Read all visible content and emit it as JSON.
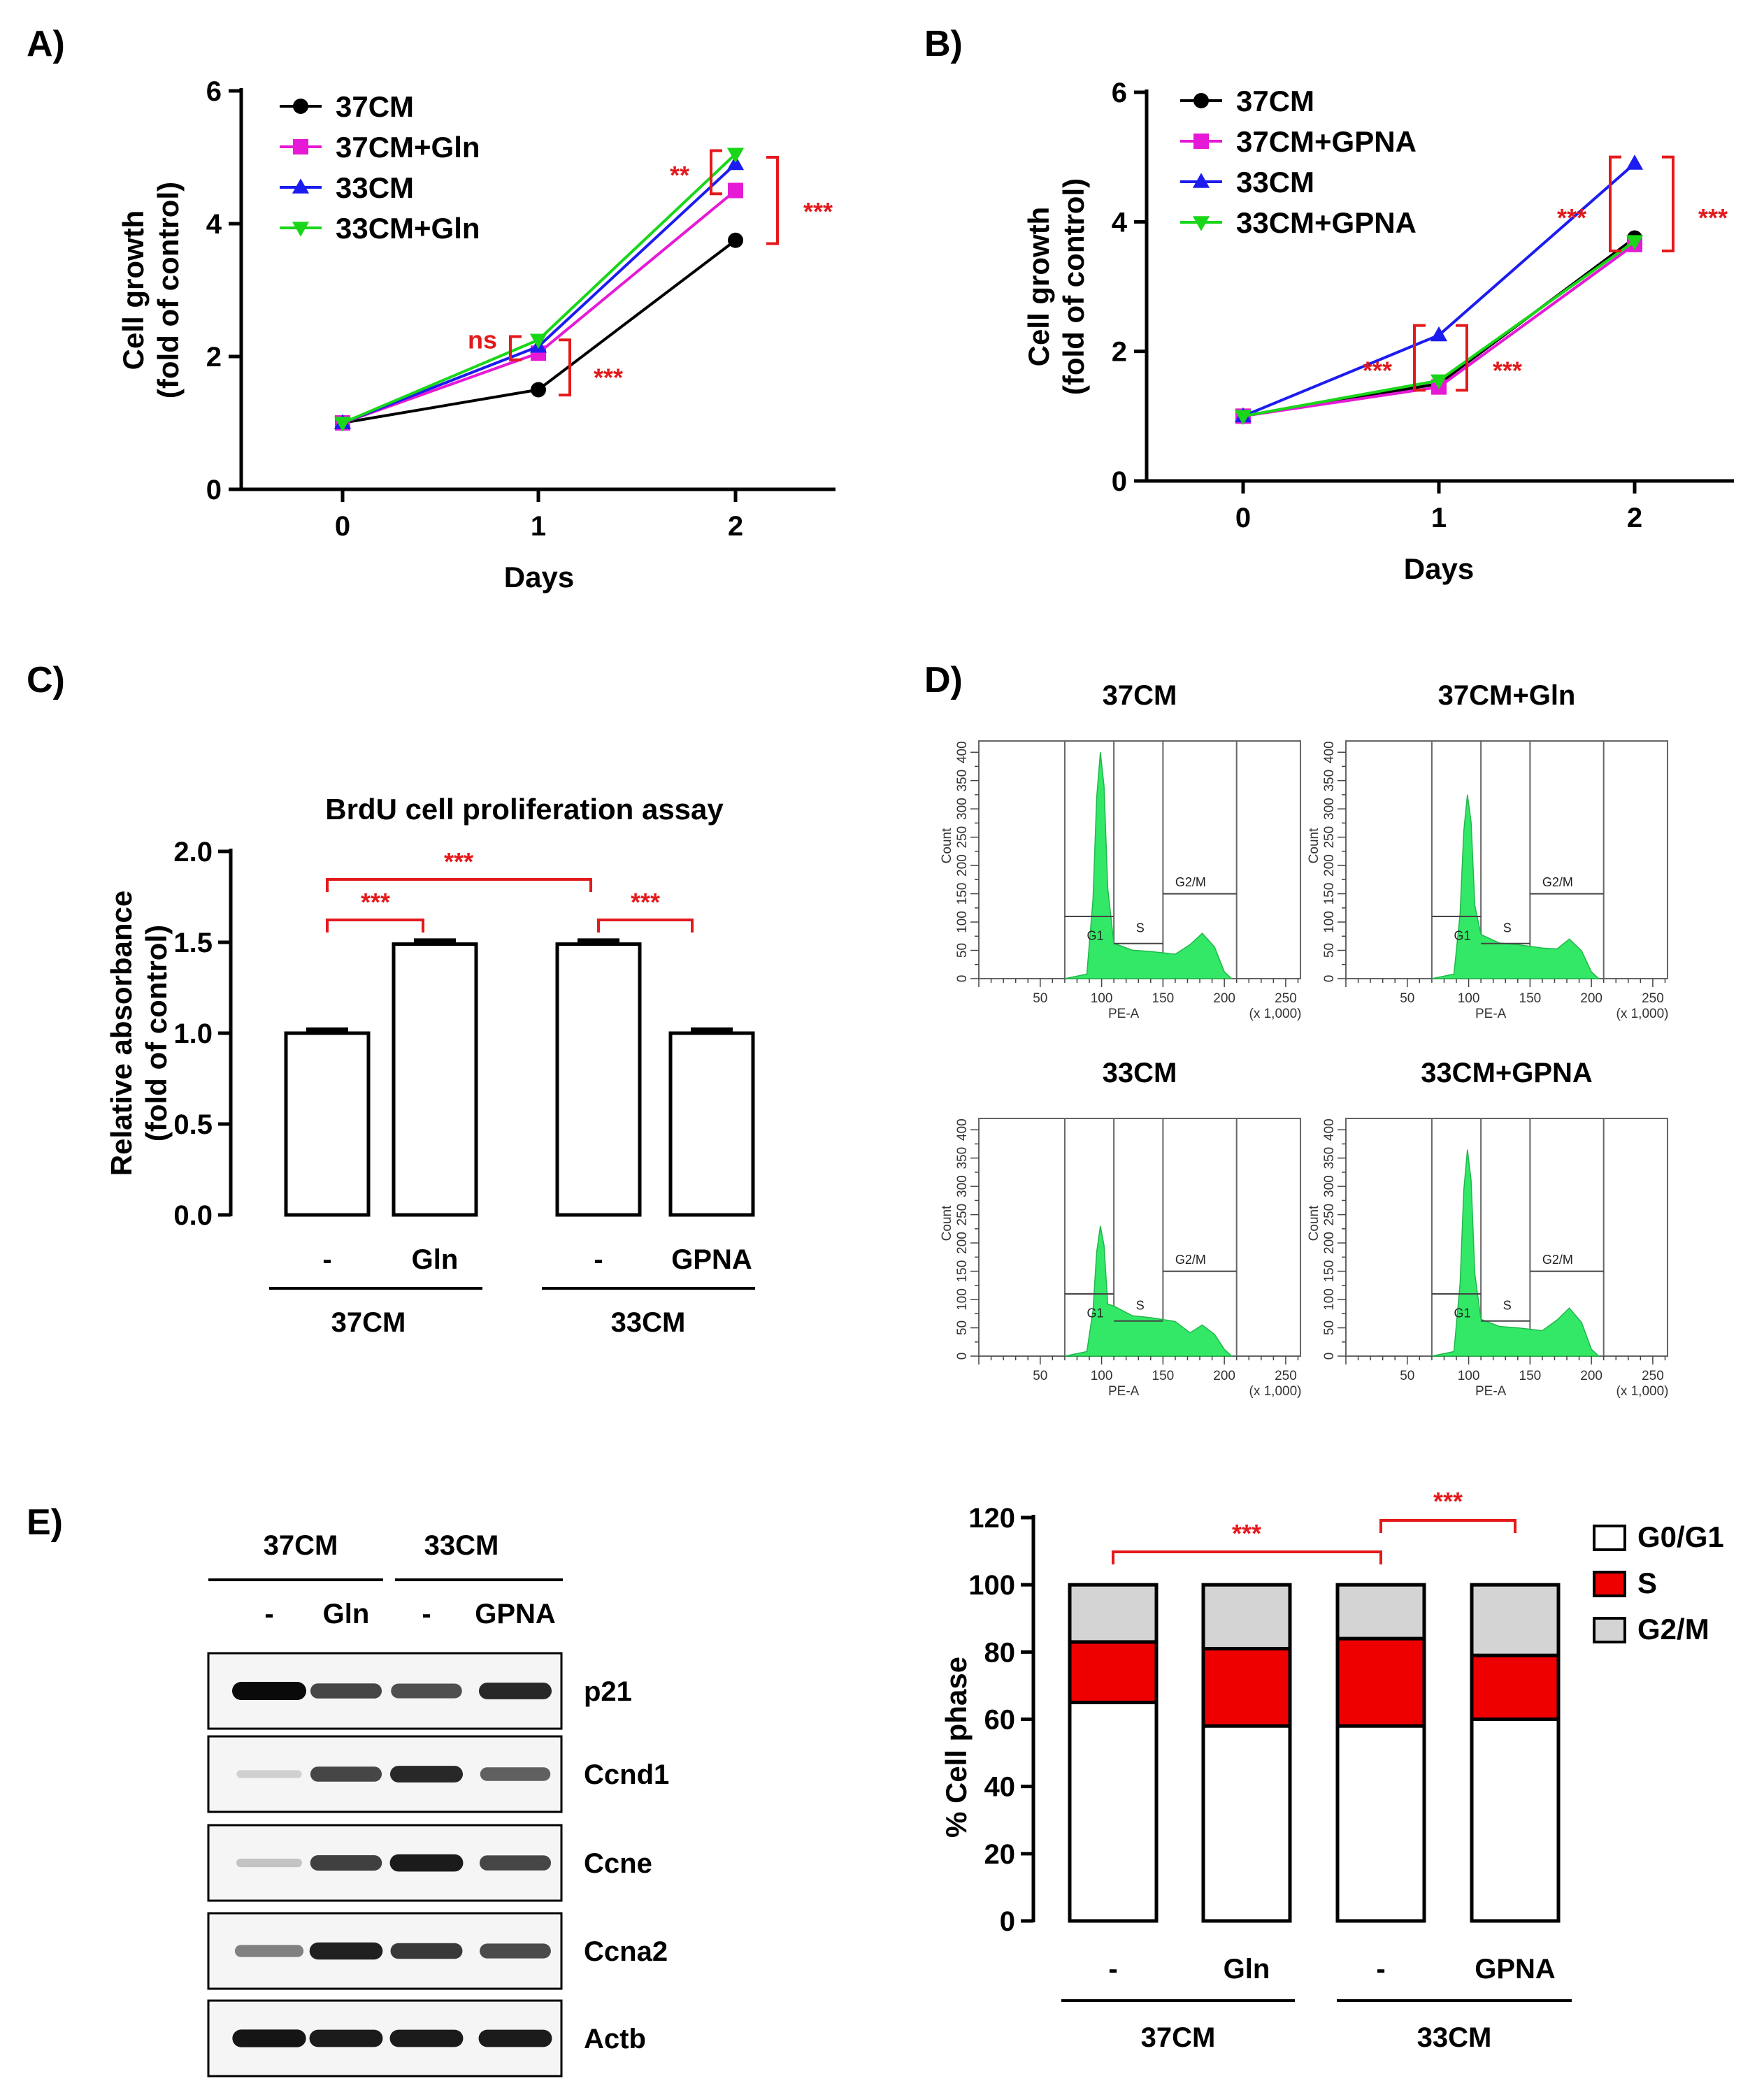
{
  "panels": {
    "a": {
      "label": "A)"
    },
    "b": {
      "label": "B)"
    },
    "c": {
      "label": "C)"
    },
    "d": {
      "label": "D)"
    },
    "e": {
      "label": "E)"
    }
  },
  "colors": {
    "c37CM": "#000000",
    "c37CMmod": "#e619d6",
    "c33CM": "#1c1cf0",
    "c33CMmod": "#19d619",
    "sig": "#e31a1c",
    "flow": "#33e866",
    "s_phase": "#ee0000",
    "g2m_phase": "#d4d4d4",
    "g0g1_phase": "#ffffff"
  },
  "chart_data": [
    {
      "id": "A",
      "type": "line",
      "xlabel": "Days",
      "ylabel": [
        "Cell growth",
        "(fold of control)"
      ],
      "x": [
        0,
        1,
        2
      ],
      "xticks": [
        "0",
        "1",
        "2"
      ],
      "ylim": [
        0,
        6
      ],
      "yticks": [
        "0",
        "2",
        "4",
        "6"
      ],
      "series": [
        {
          "name": "37CM",
          "values": [
            1.0,
            1.5,
            3.75
          ],
          "marker": "circle",
          "colorKey": "c37CM"
        },
        {
          "name": "37CM+Gln",
          "values": [
            1.0,
            2.05,
            4.5
          ],
          "marker": "square",
          "colorKey": "c37CMmod"
        },
        {
          "name": "33CM",
          "values": [
            1.0,
            2.15,
            4.9
          ],
          "marker": "triangle-up",
          "colorKey": "c33CM"
        },
        {
          "name": "33CM+Gln",
          "values": [
            1.0,
            2.25,
            5.05
          ],
          "marker": "triangle-down",
          "colorKey": "c33CMmod"
        }
      ],
      "annotations": [
        "ns",
        "***",
        "**",
        "***"
      ]
    },
    {
      "id": "B",
      "type": "line",
      "xlabel": "Days",
      "ylabel": [
        "Cell growth",
        "(fold of control)"
      ],
      "x": [
        0,
        1,
        2
      ],
      "xticks": [
        "0",
        "1",
        "2"
      ],
      "ylim": [
        0,
        6
      ],
      "yticks": [
        "0",
        "2",
        "4",
        "6"
      ],
      "series": [
        {
          "name": "37CM",
          "values": [
            1.0,
            1.5,
            3.75
          ],
          "marker": "circle",
          "colorKey": "c37CM"
        },
        {
          "name": "37CM+GPNA",
          "values": [
            1.0,
            1.45,
            3.65
          ],
          "marker": "square",
          "colorKey": "c37CMmod"
        },
        {
          "name": "33CM",
          "values": [
            1.0,
            2.25,
            4.9
          ],
          "marker": "triangle-up",
          "colorKey": "c33CM"
        },
        {
          "name": "33CM+GPNA",
          "values": [
            1.0,
            1.55,
            3.7
          ],
          "marker": "triangle-down",
          "colorKey": "c33CMmod"
        }
      ],
      "annotations": [
        "***",
        "***",
        "***",
        "***"
      ]
    },
    {
      "id": "C",
      "type": "bar",
      "title": "BrdU cell proliferation assay",
      "ylabel": [
        "Relative absorbance",
        "(fold of control)"
      ],
      "ylim": [
        0,
        2.0
      ],
      "yticks": [
        "0.0",
        "0.5",
        "1.0",
        "1.5",
        "2.0"
      ],
      "categories": [
        "-",
        "Gln",
        "-",
        "GPNA"
      ],
      "groups": [
        "37CM",
        "33CM"
      ],
      "values": [
        1.0,
        1.49,
        1.49,
        1.0
      ],
      "errors": [
        0.02,
        0.02,
        0.02,
        0.02
      ],
      "annotations": [
        "***",
        "***",
        "***"
      ]
    },
    {
      "id": "D",
      "type": "histogram",
      "xlabel": "PE-A",
      "xunit": "(x 1,000)",
      "ylabel": "Count",
      "xticks": [
        "50",
        "100",
        "150",
        "200",
        "250"
      ],
      "yticks": [
        "0",
        "50",
        "100",
        "150",
        "200",
        "250",
        "300",
        "350",
        "400"
      ],
      "gates": [
        "G1",
        "S",
        "G2/M"
      ],
      "plots": [
        {
          "title": "37CM",
          "g1_peak": 400,
          "s_level": 48,
          "g2_peak": 80
        },
        {
          "title": "37CM+Gln",
          "g1_peak": 325,
          "s_level": 60,
          "g2_peak": 70
        },
        {
          "title": "33CM",
          "g1_peak": 230,
          "s_level": 68,
          "g2_peak": 55
        },
        {
          "title": "33CM+GPNA",
          "g1_peak": 365,
          "s_level": 50,
          "g2_peak": 85
        }
      ]
    },
    {
      "id": "E-blot",
      "type": "western-blot",
      "groups": [
        "37CM",
        "33CM"
      ],
      "lanes": [
        "-",
        "Gln",
        "-",
        "GPNA"
      ],
      "proteins": [
        {
          "name": "p21",
          "intensity": [
            1.0,
            0.72,
            0.68,
            0.86
          ]
        },
        {
          "name": "Ccnd1",
          "intensity": [
            0.08,
            0.72,
            0.86,
            0.6
          ]
        },
        {
          "name": "Ccne",
          "intensity": [
            0.14,
            0.75,
            0.92,
            0.72
          ]
        },
        {
          "name": "Ccna2",
          "intensity": [
            0.45,
            0.9,
            0.78,
            0.7
          ]
        },
        {
          "name": "Actb",
          "intensity": [
            0.95,
            0.92,
            0.92,
            0.92
          ]
        }
      ]
    },
    {
      "id": "E-bars",
      "type": "stacked-bar",
      "ylabel": "% Cell phase",
      "ylim": [
        0,
        120
      ],
      "yticks": [
        "0",
        "20",
        "40",
        "60",
        "80",
        "100",
        "120"
      ],
      "categories": [
        "-",
        "Gln",
        "-",
        "GPNA"
      ],
      "groups": [
        "37CM",
        "33CM"
      ],
      "series": [
        {
          "name": "G0/G1",
          "values": [
            65,
            58,
            58,
            60
          ],
          "colorKey": "g0g1_phase"
        },
        {
          "name": "S",
          "values": [
            18,
            23,
            26,
            19
          ],
          "colorKey": "s_phase"
        },
        {
          "name": "G2/M",
          "values": [
            17,
            19,
            16,
            21
          ],
          "colorKey": "g2m_phase"
        }
      ],
      "annotations": [
        "***",
        "***"
      ]
    }
  ]
}
